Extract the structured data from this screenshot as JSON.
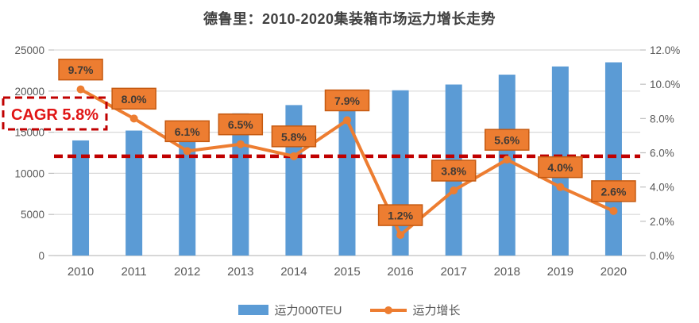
{
  "title": "德鲁里：2010-2020集装箱市场运力增长走势",
  "chart_data": {
    "type": "combo-bar-line",
    "categories": [
      "2010",
      "2011",
      "2012",
      "2013",
      "2014",
      "2015",
      "2016",
      "2017",
      "2018",
      "2019",
      "2020"
    ],
    "series": [
      {
        "name": "运力000TEU",
        "type": "bar",
        "axis": "left",
        "values": [
          14000,
          15200,
          16100,
          17300,
          18300,
          19800,
          20100,
          20800,
          22000,
          23000,
          23500
        ]
      },
      {
        "name": "运力增长",
        "type": "line",
        "axis": "right",
        "values": [
          9.7,
          8.0,
          6.1,
          6.5,
          5.8,
          7.9,
          1.2,
          3.8,
          5.6,
          4.0,
          2.6
        ],
        "point_labels": [
          "9.7%",
          "8.0%",
          "6.1%",
          "6.5%",
          "5.8%",
          "7.9%",
          "1.2%",
          "3.8%",
          "5.6%",
          "4.0%",
          "2.6%"
        ]
      }
    ],
    "left_axis": {
      "min": 0,
      "max": 25000,
      "step": 5000,
      "ticks_top_to_bottom": [
        "25000",
        "20000",
        "15000",
        "10000",
        "5000",
        "0"
      ]
    },
    "right_axis": {
      "min": 0,
      "max": 12,
      "step": 2,
      "ticks_top_to_bottom": [
        "12.0%",
        "10.0%",
        "8.0%",
        "6.0%",
        "4.0%",
        "2.0%",
        "0.0%"
      ]
    },
    "reference_line": {
      "axis": "right",
      "value": 5.8,
      "label": "CAGR 5.8%"
    },
    "grid": "horizontal-only",
    "legend_position": "bottom"
  },
  "colors": {
    "bar": "#5B9BD5",
    "line": "#ED7D31",
    "label_box_fill": "#ED7D31",
    "label_box_border": "#C55A11",
    "label_text": "#3F3A36",
    "reference_red": "#C00000",
    "cagr_text_red": "#E01515",
    "axis_text": "#595959",
    "title_text": "#404040",
    "gridline": "#D9D9D9",
    "axis_line": "#BFBFBF"
  }
}
